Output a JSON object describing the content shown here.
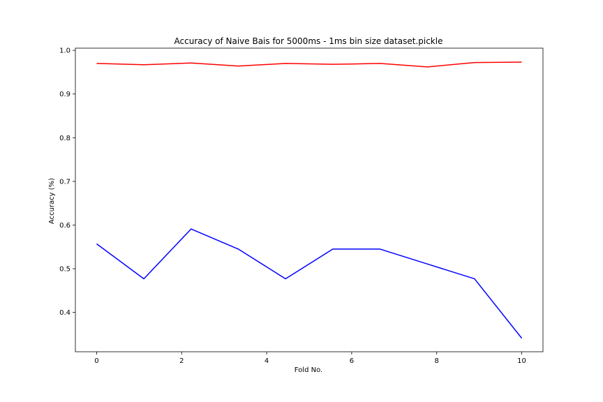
{
  "chart_data": {
    "type": "line",
    "title": "Accuracy of Naive Bais for 5000ms - 1ms bin size dataset.pickle",
    "xlabel": "Fold No.",
    "ylabel": "Accuracy (%)",
    "xlim": [
      -0.5,
      10.5
    ],
    "ylim": [
      0.31,
      1.005
    ],
    "xticks": [
      0,
      2,
      4,
      6,
      8,
      10
    ],
    "yticks": [
      0.4,
      0.5,
      0.6,
      0.7,
      0.8,
      0.9,
      1.0
    ],
    "xtick_labels": [
      "0",
      "2",
      "4",
      "6",
      "8",
      "10"
    ],
    "ytick_labels": [
      "0.4",
      "0.5",
      "0.6",
      "0.7",
      "0.8",
      "0.9",
      "1.0"
    ],
    "grid": false,
    "x": [
      0,
      1.111,
      2.222,
      3.333,
      4.444,
      5.556,
      6.667,
      7.778,
      8.889,
      10
    ],
    "series": [
      {
        "color": "#ff0000",
        "values": [
          0.97,
          0.967,
          0.971,
          0.964,
          0.97,
          0.968,
          0.97,
          0.962,
          0.972,
          0.973
        ]
      },
      {
        "color": "#0000ff",
        "values": [
          0.557,
          0.477,
          0.591,
          0.545,
          0.477,
          0.545,
          0.545,
          0.511,
          0.477,
          0.341
        ]
      }
    ]
  }
}
